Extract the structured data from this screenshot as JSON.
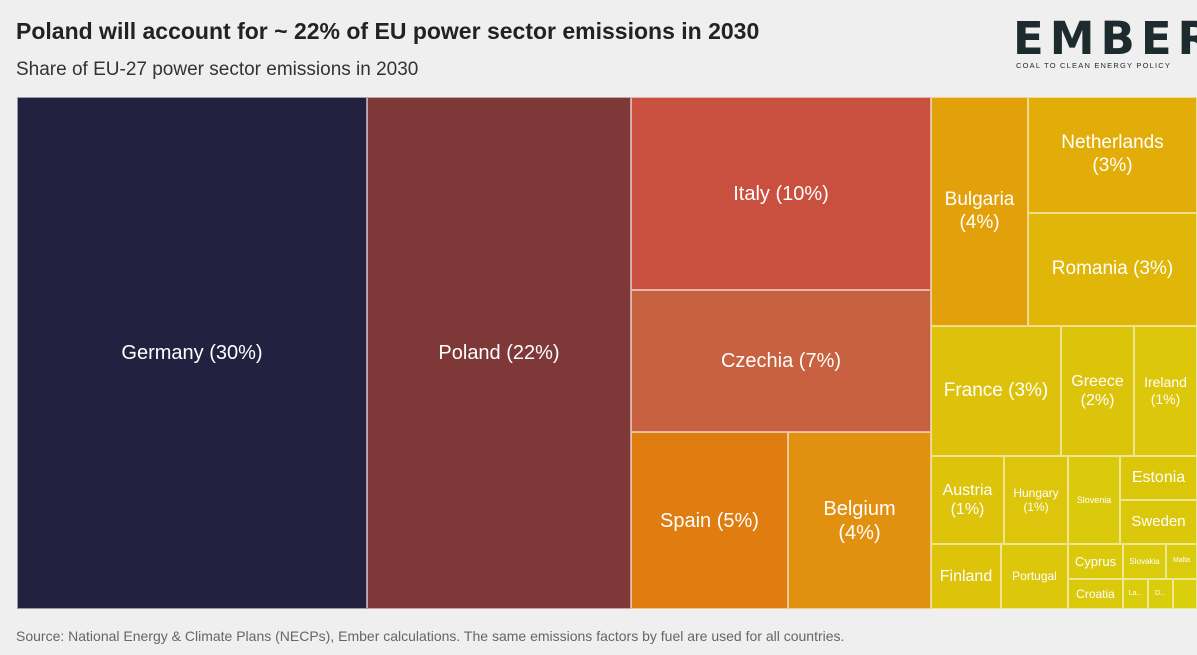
{
  "title": "Poland will account for ~ 22% of EU power sector emissions in 2030",
  "subtitle": "Share of EU-27 power sector emissions in 2030",
  "logo": {
    "word": "EMBER",
    "tagline": "COAL TO CLEAN ENERGY POLICY"
  },
  "source": "Source: National Energy & Climate Plans (NECPs), Ember calculations. The same emissions factors by fuel are used for all countries.",
  "colors": {
    "background": "#efefef",
    "germany": "#222240",
    "poland": "#7e3838",
    "italy": "#c9503e",
    "czechia": "#c76140",
    "spain": "#df7d10",
    "belgium": "#e29010",
    "bulgaria": "#e2a10a",
    "netherlands": "#e2ad08",
    "yellow": "#dcc40a"
  },
  "chart_data": {
    "type": "treemap",
    "title": "Poland will account for ~ 22% of EU power sector emissions in 2030",
    "subtitle": "Share of EU-27 power sector emissions in 2030",
    "items": [
      {
        "name": "Germany",
        "label": "Germany (30%)",
        "value": 30,
        "color": "#222240"
      },
      {
        "name": "Poland",
        "label": "Poland (22%)",
        "value": 22,
        "color": "#7e3838"
      },
      {
        "name": "Italy",
        "label": "Italy (10%)",
        "value": 10,
        "color": "#c9503e"
      },
      {
        "name": "Czechia",
        "label": "Czechia (7%)",
        "value": 7,
        "color": "#c76140"
      },
      {
        "name": "Spain",
        "label": "Spain (5%)",
        "value": 5,
        "color": "#df7d10"
      },
      {
        "name": "Belgium",
        "label": "Belgium\n(4%)",
        "value": 4,
        "color": "#e29010"
      },
      {
        "name": "Bulgaria",
        "label": "Bulgaria\n(4%)",
        "value": 4,
        "color": "#e2a10a"
      },
      {
        "name": "Netherlands",
        "label": "Netherlands\n(3%)",
        "value": 3,
        "color": "#e2ad08"
      },
      {
        "name": "Romania",
        "label": "Romania (3%)",
        "value": 3,
        "color": "#e0b608"
      },
      {
        "name": "France",
        "label": "France (3%)",
        "value": 3,
        "color": "#ddc10a"
      },
      {
        "name": "Greece",
        "label": "Greece\n(2%)",
        "value": 2,
        "color": "#dcc40a"
      },
      {
        "name": "Ireland",
        "label": "Ireland\n(1%)",
        "value": 1,
        "color": "#dcc70a"
      },
      {
        "name": "Austria",
        "label": "Austria\n(1%)",
        "value": 1,
        "color": "#ddc30a"
      },
      {
        "name": "Hungary",
        "label": "Hungary\n(1%)",
        "value": 1,
        "color": "#dcc50a"
      },
      {
        "name": "Slovenia",
        "label": "Slovenia",
        "value": null,
        "color": "#dbc90b"
      },
      {
        "name": "Estonia",
        "label": "Estonia",
        "value": null,
        "color": "#dcc60a"
      },
      {
        "name": "Sweden",
        "label": "Sweden",
        "value": null,
        "color": "#dbc80a"
      },
      {
        "name": "Finland",
        "label": "Finland",
        "value": null,
        "color": "#ddc40a"
      },
      {
        "name": "Portugal",
        "label": "Portugal",
        "value": null,
        "color": "#dcc70a"
      },
      {
        "name": "Cyprus",
        "label": "Cyprus",
        "value": null,
        "color": "#dbca0b"
      },
      {
        "name": "Slovakia",
        "label": "Slovakia",
        "value": null,
        "color": "#dacc0c"
      },
      {
        "name": "Malta",
        "label": "Malta",
        "value": null,
        "color": "#dacc0c"
      },
      {
        "name": "Croatia",
        "label": "Croatia",
        "value": null,
        "color": "#dbca0b"
      },
      {
        "name": "La...",
        "label": "La...",
        "value": null,
        "color": "#dace0c"
      },
      {
        "name": "D...",
        "label": "D...",
        "value": null,
        "color": "#dace0c"
      },
      {
        "name": "",
        "label": "",
        "value": null,
        "color": "#dacf0d"
      }
    ]
  }
}
